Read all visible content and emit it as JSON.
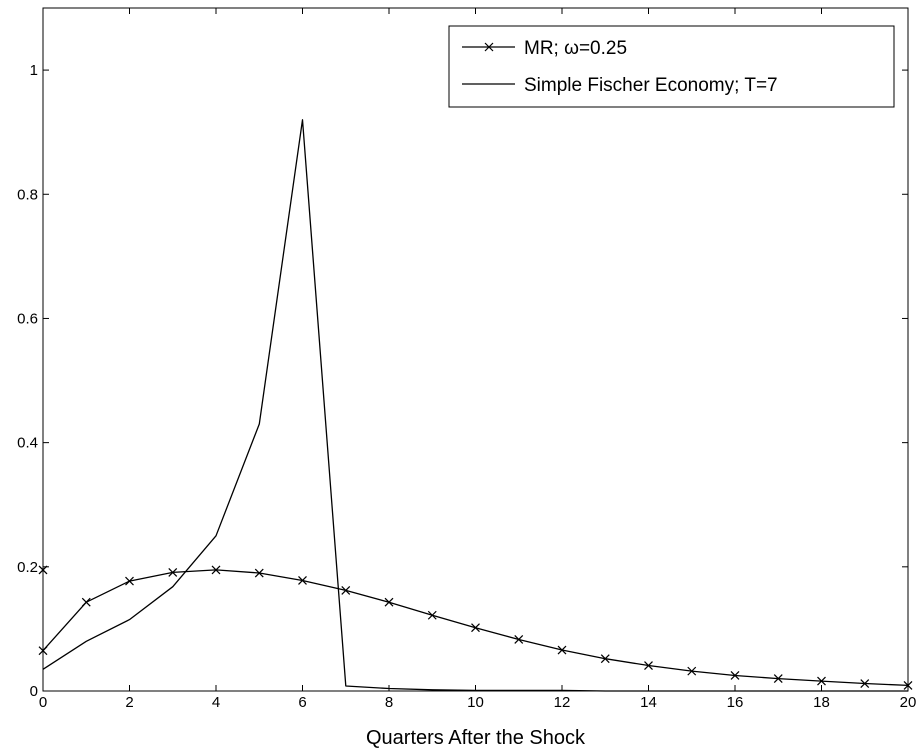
{
  "chart_data": {
    "type": "line",
    "xlabel": "Quarters After the Shock",
    "ylabel": "",
    "xlim": [
      0,
      20
    ],
    "ylim": [
      0,
      1.1
    ],
    "xticks": [
      0,
      2,
      4,
      6,
      8,
      10,
      12,
      14,
      16,
      18,
      20
    ],
    "yticks": [
      0,
      0.2,
      0.4,
      0.6,
      0.8,
      1
    ],
    "ytick_labels": [
      "0",
      "0.2",
      "0.4",
      "0.6",
      "0.8",
      "1"
    ],
    "grid": false,
    "legend_position": "top-right",
    "series": [
      {
        "name": "MR; ω=0.25",
        "marker": "x",
        "color": "#000000",
        "x": [
          0,
          1,
          2,
          3,
          4,
          5,
          6,
          7,
          8,
          9,
          10,
          11,
          12,
          13,
          14,
          15,
          16,
          17,
          18,
          19,
          20
        ],
        "values": [
          0.065,
          0.143,
          0.177,
          0.191,
          0.195,
          0.19,
          0.178,
          0.162,
          0.143,
          0.122,
          0.102,
          0.083,
          0.066,
          0.052,
          0.041,
          0.032,
          0.025,
          0.02,
          0.016,
          0.012,
          0.009
        ]
      },
      {
        "name": "Simple Fischer Economy; T=7",
        "marker": "none",
        "color": "#000000",
        "x": [
          0,
          1,
          2,
          3,
          4,
          5,
          6,
          7,
          8,
          9,
          10,
          11,
          12,
          13,
          14,
          15,
          16,
          17,
          18,
          19,
          20
        ],
        "values": [
          0.035,
          0.08,
          0.115,
          0.168,
          0.25,
          0.43,
          0.92,
          0.008,
          0.004,
          0.002,
          0.001,
          0.001,
          0.001,
          0.0,
          0.0,
          0.0,
          0.0,
          0.0,
          0.0,
          0.0,
          0.0
        ]
      }
    ],
    "annotations": [
      {
        "label": "x",
        "x": 0,
        "y": 0.195
      }
    ]
  }
}
